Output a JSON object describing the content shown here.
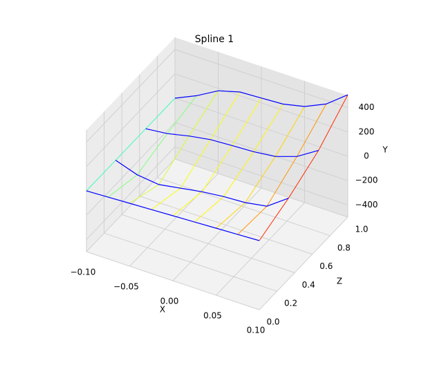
{
  "chart_data": {
    "type": "surface3d",
    "title": "Spline 1",
    "xlabel": "X",
    "ylabel": "Y",
    "zlabel": "Z",
    "x": [
      -0.1,
      -0.075,
      -0.05,
      -0.025,
      0,
      0.025,
      0.05,
      0.075,
      0.1
    ],
    "z": [
      0,
      0.33,
      0.67,
      1
    ],
    "values": [
      [
        0,
        8,
        17,
        25,
        34,
        42,
        51,
        59,
        68
      ],
      [
        0,
        -60,
        -80,
        -50,
        -20,
        0,
        10,
        40,
        165
      ],
      [
        0,
        20,
        60,
        90,
        100,
        110,
        130,
        190,
        300
      ],
      [
        0,
        80,
        180,
        230,
        240,
        250,
        290,
        370,
        505
      ]
    ],
    "row_color": "#0000ff",
    "colormap": "jet",
    "xlim": [
      -0.1,
      0.1
    ],
    "zlim": [
      0,
      1
    ],
    "ylim": [
      -500,
      500
    ],
    "xticks": [
      {
        "value": -0.1,
        "label": "−0.10"
      },
      {
        "value": -0.05,
        "label": "−0.05"
      },
      {
        "value": 0,
        "label": "0.00"
      },
      {
        "value": 0.05,
        "label": "0.05"
      },
      {
        "value": 0.1,
        "label": "0.10"
      }
    ],
    "zticks": [
      {
        "value": 0,
        "label": "0.0"
      },
      {
        "value": 0.2,
        "label": "0.2"
      },
      {
        "value": 0.4,
        "label": "0.4"
      },
      {
        "value": 0.6,
        "label": "0.6"
      },
      {
        "value": 0.8,
        "label": "0.8"
      },
      {
        "value": 1,
        "label": "1.0"
      }
    ],
    "yticks": [
      {
        "value": -400,
        "label": "−400"
      },
      {
        "value": -200,
        "label": "−200"
      },
      0,
      200,
      400
    ],
    "grid": true
  }
}
